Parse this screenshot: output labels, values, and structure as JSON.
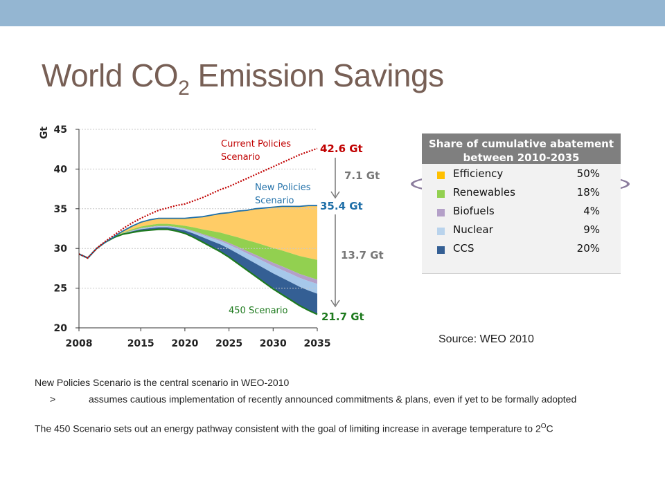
{
  "title_main": "World CO",
  "title_sub": "2",
  "title_rest": " Emission Savings",
  "chart_data": {
    "type": "area",
    "ylabel": "Gt",
    "ylim": [
      20,
      45
    ],
    "yticks": [
      20,
      25,
      30,
      35,
      40,
      45
    ],
    "xlim": [
      2008,
      2035
    ],
    "xticks": [
      2008,
      2015,
      2020,
      2025,
      2030,
      2035
    ],
    "x": [
      2008,
      2009,
      2010,
      2011,
      2012,
      2013,
      2014,
      2015,
      2016,
      2017,
      2018,
      2019,
      2020,
      2021,
      2022,
      2023,
      2024,
      2025,
      2026,
      2027,
      2028,
      2029,
      2030,
      2031,
      2032,
      2033,
      2034,
      2035
    ],
    "series": [
      {
        "name": "Current Policies Scenario",
        "color": "#c00000",
        "values": [
          29.3,
          28.8,
          30.0,
          30.9,
          31.7,
          32.5,
          33.2,
          33.8,
          34.3,
          34.8,
          35.1,
          35.4,
          35.6,
          36.0,
          36.4,
          36.9,
          37.4,
          37.8,
          38.3,
          38.8,
          39.3,
          39.8,
          40.3,
          40.8,
          41.3,
          41.8,
          42.2,
          42.6
        ]
      },
      {
        "name": "New Policies Scenario",
        "color": "#1f6fa8",
        "values": [
          29.3,
          28.8,
          30.0,
          30.8,
          31.5,
          32.2,
          32.8,
          33.3,
          33.6,
          33.8,
          33.8,
          33.8,
          33.8,
          33.9,
          34.0,
          34.2,
          34.4,
          34.5,
          34.7,
          34.8,
          35.0,
          35.1,
          35.2,
          35.3,
          35.3,
          35.3,
          35.4,
          35.4
        ]
      },
      {
        "name": "450 Scenario",
        "color": "#1e7a1e",
        "values": [
          29.3,
          28.8,
          30.0,
          30.8,
          31.4,
          31.8,
          32.0,
          32.2,
          32.3,
          32.4,
          32.4,
          32.2,
          31.9,
          31.4,
          30.8,
          30.2,
          29.6,
          28.9,
          28.1,
          27.3,
          26.5,
          25.7,
          24.9,
          24.2,
          23.5,
          22.8,
          22.2,
          21.7
        ]
      }
    ],
    "abatement_at_2035": [
      {
        "name": "Efficiency",
        "color": "#ffcc66",
        "value": 6.85
      },
      {
        "name": "Renewables",
        "color": "#92d050",
        "value": 2.47
      },
      {
        "name": "Biofuels",
        "color": "#b4a0c8",
        "value": 0.55
      },
      {
        "name": "Nuclear",
        "color": "#a6c8ea",
        "value": 1.23
      },
      {
        "name": "CCS",
        "color": "#345f94",
        "value": 2.6
      }
    ],
    "value_labels": {
      "current": "42.6 Gt",
      "new_policies": "35.4 Gt",
      "scenario_450": "21.7 Gt"
    },
    "gap_labels": {
      "upper": "7.1 Gt",
      "lower": "13.7 Gt"
    },
    "scenario_labels": {
      "current_line1": "Current Policies",
      "current_line2": "Scenario",
      "new_line1": "New Policies",
      "new_line2": "Scenario",
      "s450": "450 Scenario"
    }
  },
  "share_table": {
    "header_line1": "Share of cumulative abatement",
    "header_line2": "between 2010-2035",
    "rows": [
      {
        "name": "Efficiency",
        "pct": "50%",
        "color": "#ffc000"
      },
      {
        "name": "Renewables",
        "pct": "18%",
        "color": "#92d050"
      },
      {
        "name": "Biofuels",
        "pct": "4%",
        "color": "#b4a0c8"
      },
      {
        "name": "Nuclear",
        "pct": "9%",
        "color": "#b9d3ec"
      },
      {
        "name": "CCS",
        "pct": "20%",
        "color": "#345f94"
      }
    ]
  },
  "source": "Source: WEO 2010",
  "notes": {
    "line1": "New Policies Scenario is the central scenario in WEO-2010",
    "bullet": ">",
    "sub": "assumes cautious implementation of recently announced  commitments & plans, even if yet to be formally adopted",
    "line2_main": "The 450 Scenario sets out an energy pathway consistent with the goal of limiting increase in average temperature  to 2",
    "line2_sup": "O",
    "line2_end": "C"
  }
}
